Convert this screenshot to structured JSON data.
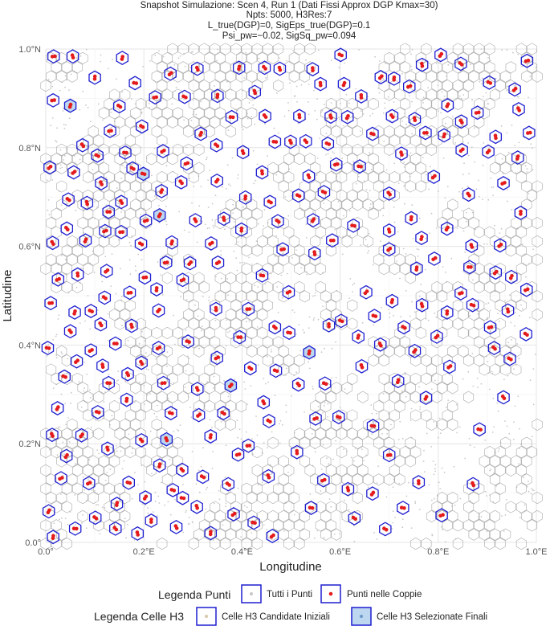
{
  "chart_data": {
    "type": "scatter",
    "title_lines": [
      "Snapshot Simulazione: Scen 4, Run 1 (Dati Fissi Approx DGP Kmax=30)",
      "Npts: 5000, H3Res:7",
      "L_true(DGP)=0, SigEps_true(DGP)=0.1",
      "Psi_pw=−0.02, SigSq_pw=0.094"
    ],
    "xlabel": "Longitudine",
    "ylabel": "Latitudine",
    "xlim": [
      0,
      1
    ],
    "ylim": [
      0,
      1
    ],
    "x_ticks": [
      0.0,
      0.2,
      0.4,
      0.6,
      0.8,
      1.0
    ],
    "x_tick_labels": [
      "0.0°",
      "0.2°E",
      "0.4°E",
      "0.6°E",
      "0.8°E",
      "1.0°E"
    ],
    "y_ticks": [
      0.0,
      0.2,
      0.4,
      0.6,
      0.8,
      1.0
    ],
    "y_tick_labels": [
      "0.0°",
      "0.2°N",
      "0.4°N",
      "0.6°N",
      "0.8°N",
      "1.0°N"
    ],
    "grid": true,
    "legend_placement": "bottom",
    "legend_points": {
      "title": "Legenda Punti",
      "items": [
        "Tutti i Punti",
        "Punti nelle Coppie"
      ]
    },
    "legend_cells": {
      "title": "Legenda Celle H3",
      "items": [
        "Celle H3 Candidate Iniziali",
        "Celle H3 Selezionate Finali"
      ]
    },
    "series": [
      {
        "name": "Tutti i Punti",
        "color": "#c8c8c8",
        "kind": "points",
        "count": 5000
      },
      {
        "name": "Punti nelle Coppie",
        "color": "#e41a1c",
        "kind": "points"
      },
      {
        "name": "Celle H3 Candidate Iniziali",
        "color": "#a8a8a8",
        "kind": "hexagon"
      },
      {
        "name": "Celle H3 Selezionate Finali",
        "color": "#1f1fd0",
        "fill": "#bcd7ef",
        "kind": "hexagon"
      }
    ],
    "selected_cells": [
      [
        0.006,
        0.063
      ],
      [
        0.042,
        0.175
      ],
      [
        0.073,
        0.217
      ],
      [
        0.169,
        0.121
      ],
      [
        0.203,
        0.091
      ],
      [
        0.195,
        0.207
      ],
      [
        0.232,
        0.156
      ],
      [
        0.246,
        0.209
      ],
      [
        0.308,
        0.072
      ],
      [
        0.383,
        0.057
      ],
      [
        0.454,
        0.134
      ],
      [
        0.413,
        0.196
      ],
      [
        0.455,
        0.246
      ],
      [
        0.444,
        0.284
      ],
      [
        0.469,
        0.348
      ],
      [
        0.467,
        0.436
      ],
      [
        0.441,
        0.541
      ],
      [
        0.495,
        0.507
      ],
      [
        0.483,
        0.594
      ],
      [
        0.548,
        0.586
      ],
      [
        0.473,
        0.651
      ],
      [
        0.399,
        0.634
      ],
      [
        0.407,
        0.699
      ],
      [
        0.349,
        0.733
      ],
      [
        0.276,
        0.73
      ],
      [
        0.177,
        0.758
      ],
      [
        0.154,
        0.69
      ],
      [
        0.121,
        0.631
      ],
      [
        0.124,
        0.55
      ],
      [
        0.065,
        0.543
      ],
      [
        0.01,
        0.485
      ],
      [
        0.05,
        0.428
      ],
      [
        0.092,
        0.389
      ],
      [
        0.128,
        0.323
      ],
      [
        0.165,
        0.289
      ],
      [
        0.255,
        0.262
      ],
      [
        0.309,
        0.311
      ],
      [
        0.349,
        0.374
      ],
      [
        0.395,
        0.416
      ],
      [
        0.413,
        0.473
      ],
      [
        0.347,
        0.473
      ],
      [
        0.29,
        0.407
      ],
      [
        0.23,
        0.47
      ],
      [
        0.202,
        0.537
      ],
      [
        0.257,
        0.608
      ],
      [
        0.305,
        0.653
      ],
      [
        0.196,
        0.843
      ],
      [
        0.131,
        0.834
      ],
      [
        0.05,
        0.885
      ],
      [
        0.1,
        0.942
      ],
      [
        0.156,
        0.982
      ],
      [
        0.223,
        0.902
      ],
      [
        0.283,
        0.903
      ],
      [
        0.316,
        0.828
      ],
      [
        0.379,
        0.862
      ],
      [
        0.426,
        0.913
      ],
      [
        0.477,
        0.96
      ],
      [
        0.544,
        0.959
      ],
      [
        0.608,
        0.929
      ],
      [
        0.683,
        0.943
      ],
      [
        0.741,
        0.924
      ],
      [
        0.819,
        0.886
      ],
      [
        0.88,
        0.871
      ],
      [
        0.902,
        0.792
      ],
      [
        0.933,
        0.728
      ],
      [
        0.968,
        0.668
      ],
      [
        0.926,
        0.602
      ],
      [
        0.864,
        0.558
      ],
      [
        0.846,
        0.505
      ],
      [
        0.906,
        0.436
      ],
      [
        0.946,
        0.372
      ],
      [
        0.933,
        0.294
      ],
      [
        0.884,
        0.229
      ],
      [
        0.871,
        0.118
      ],
      [
        0.807,
        0.055
      ],
      [
        0.76,
        0.122
      ],
      [
        0.7,
        0.177
      ],
      [
        0.667,
        0.236
      ],
      [
        0.597,
        0.254
      ],
      [
        0.569,
        0.322
      ],
      [
        0.644,
        0.357
      ],
      [
        0.718,
        0.327
      ],
      [
        0.775,
        0.293
      ],
      [
        0.823,
        0.356
      ],
      [
        0.797,
        0.417
      ],
      [
        0.73,
        0.436
      ],
      [
        0.706,
        0.489
      ],
      [
        0.653,
        0.507
      ],
      [
        0.602,
        0.449
      ],
      [
        0.537,
        0.385
      ],
      [
        0.515,
        0.32
      ],
      [
        0.55,
        0.251
      ],
      [
        0.512,
        0.183
      ],
      [
        0.566,
        0.126
      ],
      [
        0.629,
        0.049
      ],
      [
        0.692,
        0.027
      ],
      [
        0.541,
        0.07
      ],
      [
        0.616,
        0.108
      ],
      [
        0.666,
        0.099
      ],
      [
        0.728,
        0.07
      ],
      [
        0.756,
        0.555
      ],
      [
        0.7,
        0.594
      ],
      [
        0.627,
        0.642
      ],
      [
        0.567,
        0.71
      ],
      [
        0.64,
        0.762
      ],
      [
        0.7,
        0.707
      ],
      [
        0.745,
        0.657
      ],
      [
        0.818,
        0.636
      ],
      [
        0.862,
        0.705
      ],
      [
        0.791,
        0.741
      ],
      [
        0.725,
        0.788
      ],
      [
        0.666,
        0.828
      ],
      [
        0.575,
        0.808
      ],
      [
        0.499,
        0.812
      ],
      [
        0.441,
        0.75
      ],
      [
        0.581,
        0.863
      ],
      [
        0.774,
        0.83
      ],
      [
        0.848,
        0.795
      ],
      [
        0.964,
        0.878
      ],
      [
        0.981,
        0.976
      ],
      [
        0.846,
        0.97
      ],
      [
        0.805,
        0.988
      ],
      [
        0.71,
        0.94
      ],
      [
        0.046,
        0.695
      ],
      [
        0.008,
        0.76
      ],
      [
        0.075,
        0.805
      ],
      [
        0.015,
        0.896
      ],
      [
        0.016,
        0.985
      ],
      [
        0.055,
        0.985
      ],
      [
        0.194,
        0.605
      ],
      [
        0.232,
        0.663
      ],
      [
        0.351,
        0.567
      ],
      [
        0.279,
        0.532
      ],
      [
        0.175,
        0.439
      ],
      [
        0.092,
        0.469
      ],
      [
        0.038,
        0.336
      ],
      [
        0.004,
        0.394
      ],
      [
        0.024,
        0.272
      ],
      [
        0.013,
        0.218
      ],
      [
        0.106,
        0.264
      ],
      [
        0.031,
        0.13
      ],
      [
        0.015,
        0.011
      ],
      [
        0.06,
        0.028
      ],
      [
        0.101,
        0.05
      ],
      [
        0.142,
        0.028
      ],
      [
        0.187,
        0.018
      ],
      [
        0.266,
        0.031
      ],
      [
        0.336,
        0.019
      ],
      [
        0.424,
        0.04
      ],
      [
        0.462,
        0.013
      ],
      [
        0.32,
        0.133
      ],
      [
        0.279,
        0.09
      ],
      [
        0.372,
        0.118
      ],
      [
        0.278,
        0.147
      ],
      [
        0.336,
        0.215
      ],
      [
        0.392,
        0.178
      ],
      [
        0.362,
        0.262
      ],
      [
        0.312,
        0.258
      ],
      [
        0.24,
        0.323
      ],
      [
        0.195,
        0.364
      ],
      [
        0.23,
        0.394
      ],
      [
        0.167,
        0.341
      ],
      [
        0.142,
        0.403
      ],
      [
        0.112,
        0.442
      ],
      [
        0.063,
        0.367
      ],
      [
        0.116,
        0.358
      ],
      [
        0.126,
        0.19
      ],
      [
        0.088,
        0.12
      ],
      [
        0.145,
        0.078
      ],
      [
        0.215,
        0.044
      ],
      [
        0.259,
        0.106
      ],
      [
        0.377,
        0.318
      ],
      [
        0.417,
        0.353
      ],
      [
        0.496,
        0.425
      ],
      [
        0.577,
        0.44
      ],
      [
        0.637,
        0.417
      ],
      [
        0.67,
        0.459
      ],
      [
        0.682,
        0.401
      ],
      [
        0.752,
        0.388
      ],
      [
        0.767,
        0.481
      ],
      [
        0.818,
        0.466
      ],
      [
        0.87,
        0.481
      ],
      [
        0.914,
        0.394
      ],
      [
        0.979,
        0.422
      ],
      [
        0.942,
        0.47
      ],
      [
        0.98,
        0.512
      ],
      [
        0.949,
        0.538
      ],
      [
        0.917,
        0.547
      ],
      [
        0.868,
        0.601
      ],
      [
        0.792,
        0.575
      ],
      [
        0.766,
        0.617
      ],
      [
        0.7,
        0.632
      ],
      [
        0.584,
        0.612
      ],
      [
        0.545,
        0.653
      ],
      [
        0.515,
        0.703
      ],
      [
        0.592,
        0.766
      ],
      [
        0.536,
        0.742
      ],
      [
        0.457,
        0.69
      ],
      [
        0.363,
        0.656
      ],
      [
        0.337,
        0.606
      ],
      [
        0.294,
        0.566
      ],
      [
        0.245,
        0.567
      ],
      [
        0.226,
        0.513
      ],
      [
        0.171,
        0.506
      ],
      [
        0.12,
        0.496
      ],
      [
        0.059,
        0.466
      ],
      [
        0.025,
        0.533
      ],
      [
        0.014,
        0.607
      ],
      [
        0.081,
        0.612
      ],
      [
        0.154,
        0.629
      ],
      [
        0.204,
        0.652
      ],
      [
        0.236,
        0.712
      ],
      [
        0.199,
        0.747
      ],
      [
        0.113,
        0.728
      ],
      [
        0.084,
        0.688
      ],
      [
        0.043,
        0.636
      ],
      [
        0.128,
        0.67
      ],
      [
        0.15,
        0.884
      ],
      [
        0.182,
        0.931
      ],
      [
        0.254,
        0.95
      ],
      [
        0.309,
        0.96
      ],
      [
        0.35,
        0.905
      ],
      [
        0.394,
        0.962
      ],
      [
        0.446,
        0.962
      ],
      [
        0.447,
        0.864
      ],
      [
        0.467,
        0.812
      ],
      [
        0.517,
        0.864
      ],
      [
        0.56,
        0.929
      ],
      [
        0.601,
        0.988
      ],
      [
        0.643,
        0.904
      ],
      [
        0.706,
        0.864
      ],
      [
        0.752,
        0.858
      ],
      [
        0.812,
        0.825
      ],
      [
        0.847,
        0.853
      ],
      [
        0.917,
        0.822
      ],
      [
        0.962,
        0.78
      ],
      [
        0.985,
        0.83
      ],
      [
        0.904,
        0.932
      ],
      [
        0.956,
        0.918
      ],
      [
        0.767,
        0.968
      ],
      [
        0.615,
        0.862
      ],
      [
        0.53,
        0.813
      ],
      [
        0.402,
        0.791
      ],
      [
        0.348,
        0.805
      ],
      [
        0.287,
        0.768
      ],
      [
        0.239,
        0.793
      ],
      [
        0.162,
        0.79
      ],
      [
        0.105,
        0.784
      ],
      [
        0.057,
        0.75
      ]
    ],
    "paired_points": "red points lie at the centres of the selected cells"
  }
}
